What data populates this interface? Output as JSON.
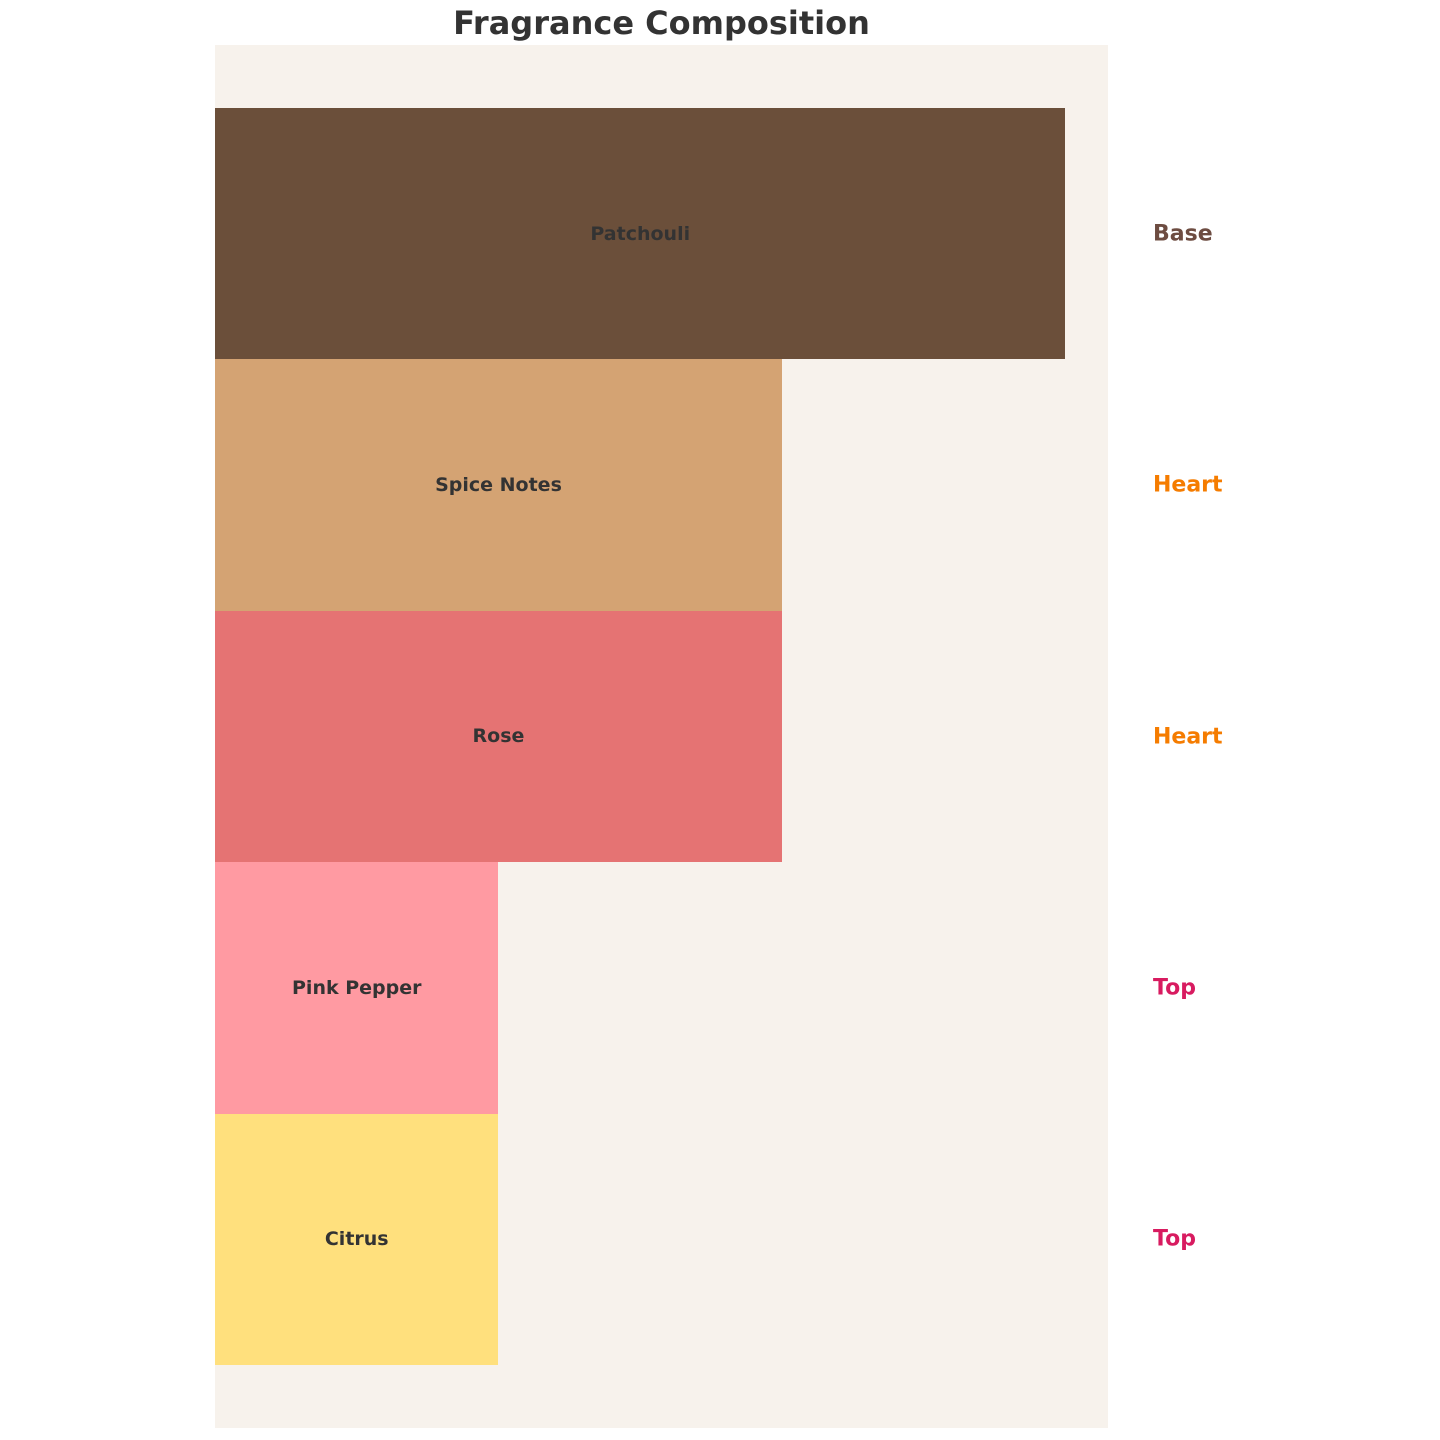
{
  "chart_data": {
    "type": "bar",
    "orientation": "horizontal",
    "title": "Fragrance Composition",
    "categories": [
      "Patchouli",
      "Spice Notes",
      "Rose",
      "Pink Pepper",
      "Citrus"
    ],
    "values": [
      3,
      2,
      2,
      1,
      1
    ],
    "stages": [
      "Base",
      "Heart",
      "Heart",
      "Top",
      "Top"
    ],
    "bar_colors": [
      "#6b4f3a",
      "#d4a373",
      "#e57373",
      "#ff9aa2",
      "#ffe07d"
    ],
    "stage_colors": {
      "Base": "#6d4c41",
      "Heart": "#f57c00",
      "Top": "#d81b60"
    },
    "xlim": [
      0,
      3.15
    ],
    "axes_visible": false,
    "grid": false,
    "background": "#f7f2ec"
  }
}
